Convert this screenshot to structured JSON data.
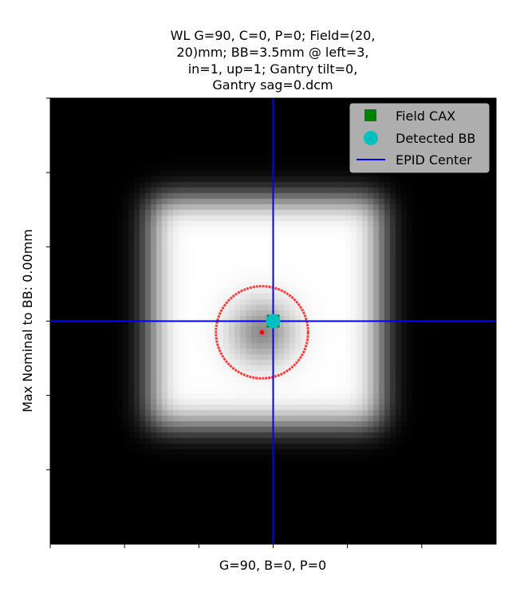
{
  "chart_data": {
    "type": "image",
    "title_lines": [
      "WL G=90, C=0, P=0; Field=(20,",
      "20)mm; BB=3.5mm @ left=3,",
      "in=1, up=1; Gantry tilt=0,",
      "Gantry sag=0.dcm"
    ],
    "xlabel": "G=90, B=0, P=0",
    "ylabel": "Max Nominal to BB: 0.00mm",
    "xlim": [
      0,
      6
    ],
    "ylim": [
      0,
      6
    ],
    "xticks": [
      0,
      1,
      2,
      3,
      4,
      5
    ],
    "yticks": [
      0,
      1,
      2,
      3,
      4,
      5
    ],
    "image": {
      "field": {
        "xmin": 1.35,
        "xmax": 4.45,
        "ymin": 1.35,
        "ymax": 4.4,
        "blur": 0.28
      },
      "bb": {
        "cx": 2.85,
        "cy": 3.15,
        "r": 0.55,
        "depth": 0.45
      }
    },
    "bb_outline": {
      "cx": 2.85,
      "cy": 3.15,
      "r": 0.62,
      "color": "#ff0000"
    },
    "bb_center_point": {
      "x": 2.85,
      "y": 3.15,
      "color": "#ff0000"
    },
    "field_cax": {
      "x": 3.0,
      "y": 3.0,
      "color": "#008000",
      "marker": "square"
    },
    "detected_bb": {
      "x": 3.0,
      "y": 3.0,
      "color": "#00bfbf",
      "marker": "circle"
    },
    "epid_center": {
      "x": 3.0,
      "y": 3.0,
      "color": "#0000ff"
    },
    "legend": {
      "position": "top-right",
      "items": [
        {
          "label": "Field CAX",
          "marker": "square",
          "color": "#008000"
        },
        {
          "label": "Detected BB",
          "marker": "circle",
          "color": "#00bfbf"
        },
        {
          "label": "EPID Center",
          "marker": "line",
          "color": "#0000ff"
        }
      ]
    }
  }
}
